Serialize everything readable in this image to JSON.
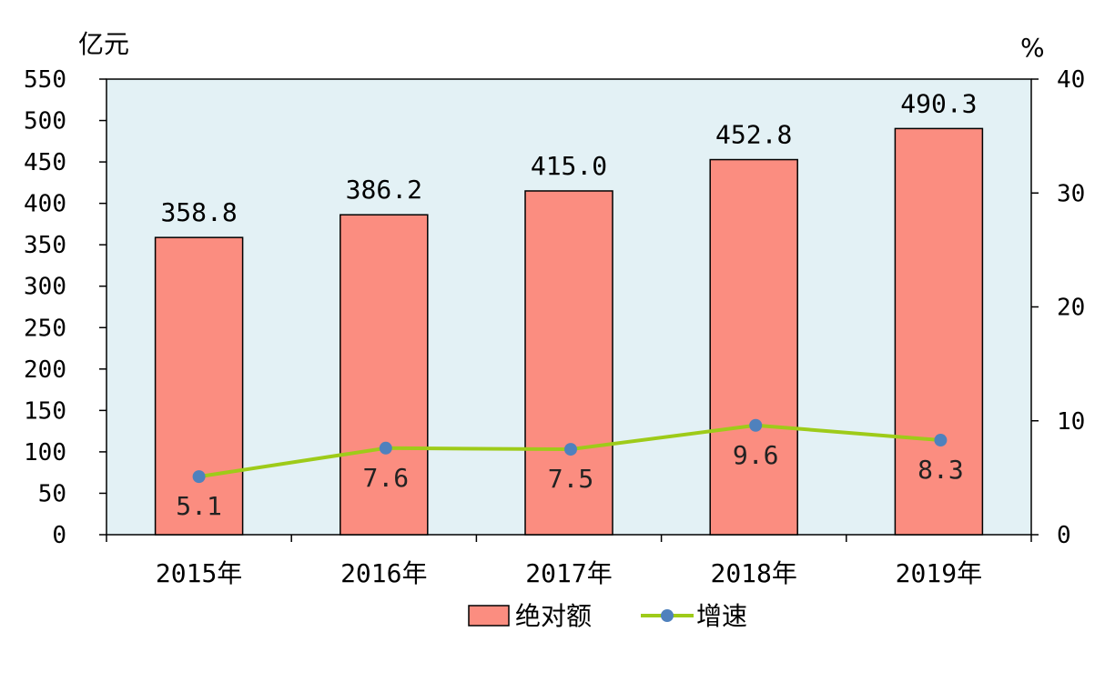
{
  "chart_data": {
    "type": "bar",
    "categories": [
      "2015年",
      "2016年",
      "2017年",
      "2018年",
      "2019年"
    ],
    "series": [
      {
        "name": "绝对额",
        "type": "bar",
        "axis": "left",
        "values": [
          358.8,
          386.2,
          415.0,
          452.8,
          490.3
        ],
        "labels": [
          "358.8",
          "386.2",
          "415.0",
          "452.8",
          "490.3"
        ]
      },
      {
        "name": "增速",
        "type": "line",
        "axis": "right",
        "values": [
          5.1,
          7.6,
          7.5,
          9.6,
          8.3
        ],
        "labels": [
          "5.1",
          "7.6",
          "7.5",
          "9.6",
          "8.3"
        ]
      }
    ],
    "y_left": {
      "unit": "亿元",
      "range": [
        0,
        550
      ],
      "ticks": [
        "0",
        "50",
        "100",
        "150",
        "200",
        "250",
        "300",
        "350",
        "400",
        "450",
        "500",
        "550"
      ]
    },
    "y_right": {
      "unit": "%",
      "range": [
        0,
        40
      ],
      "ticks": [
        "0",
        "10",
        "20",
        "30",
        "40"
      ]
    },
    "legend": {
      "position": "bottom",
      "items": [
        "绝对额",
        "增速"
      ]
    },
    "grid": false
  },
  "colors": {
    "plot_background": "#e3f1f5",
    "bar_fill": "#fb8d80",
    "bar_stroke": "#000000",
    "line": "#9ecb19",
    "marker": "#4f81bd"
  }
}
